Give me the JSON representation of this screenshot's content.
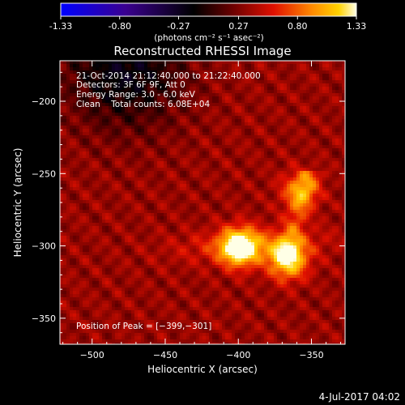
{
  "colorbar": {
    "ticks": [
      "-1.33",
      "-0.80",
      "-0.27",
      "0.27",
      "0.80",
      "1.33"
    ],
    "tick_values": [
      -1.33,
      -0.8,
      -0.27,
      0.27,
      0.8,
      1.33
    ],
    "range": [
      -1.33,
      1.33
    ],
    "colormap": [
      "#0000ff",
      "#3a008f",
      "#000000",
      "#6a0000",
      "#e01000",
      "#ff8a00",
      "#ffd200",
      "#ffffe6"
    ]
  },
  "chart_data": {
    "type": "heatmap",
    "title": "Reconstructed RHESSI Image",
    "xlabel": "Heliocentric X (arcsec)",
    "ylabel": "Heliocentric Y (arcsec)",
    "units": "(photons cm⁻² s⁻¹ asec⁻²)",
    "xlim": [
      -522,
      -327
    ],
    "ylim": [
      -368,
      -172
    ],
    "xticks": [
      -500,
      -450,
      -400,
      -350
    ],
    "yticks": [
      -350,
      -300,
      -250,
      -200
    ],
    "xtick_labels": [
      "−500",
      "−450",
      "−400",
      "−350"
    ],
    "ytick_labels": [
      "−350",
      "−300",
      "−250",
      "−200"
    ],
    "sources": [
      {
        "x": -399,
        "y": -301,
        "peak": 1.33
      },
      {
        "x": -366,
        "y": -310,
        "peak": 1.15
      },
      {
        "x": -358,
        "y": -262,
        "peak": 0.65
      }
    ],
    "peak_position": [
      -399,
      -301
    ]
  },
  "info": {
    "time": "21-Oct-2014 21:12:40.000 to 21:22:40.000",
    "detectors": "Detectors: 3F 6F 9F, Att 0",
    "energy": "Energy Range: 3.0 - 6.0 keV",
    "method": "Clean    Total counts: 6.08E+04",
    "peak": "Position of Peak = [−399,−301]"
  },
  "footer": {
    "date": "4-Jul-2017 04:02"
  }
}
